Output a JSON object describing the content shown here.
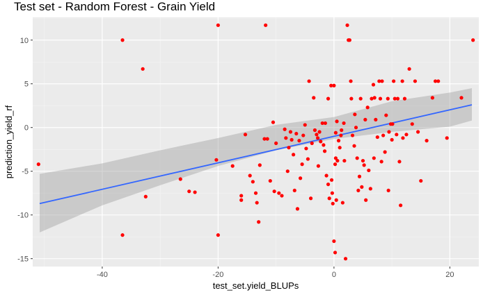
{
  "chart_data": {
    "type": "scatter",
    "title": "Test set - Random Forest - Grain Yield",
    "xlabel": "test_set.yield_BLUPs",
    "ylabel": "prediction_yield_rf",
    "xlim": [
      -52,
      25
    ],
    "ylim": [
      -15.9,
      12.6
    ],
    "xticks": [
      -40,
      -20,
      0,
      20
    ],
    "yticks": [
      -15,
      -10,
      -5,
      0,
      5,
      10
    ],
    "background": "#ebebeb",
    "grid": true,
    "point_color": "#ff0000",
    "fit_line_color": "#3366ff",
    "ribbon_color": "#999999",
    "fit_line": {
      "x_start": -50.8,
      "y_start": -8.7,
      "x_end": 23.8,
      "y_end": 2.6
    },
    "confidence_band": [
      {
        "x": -50.8,
        "lower": -12.0,
        "upper": -5.3
      },
      {
        "x": -40,
        "lower": -8.9,
        "upper": -4.1
      },
      {
        "x": -30,
        "lower": -6.6,
        "upper": -2.6
      },
      {
        "x": -20,
        "lower": -4.4,
        "upper": -1.2
      },
      {
        "x": -10,
        "lower": -2.6,
        "upper": 0.3
      },
      {
        "x": 0,
        "lower": -1.3,
        "upper": 1.2
      },
      {
        "x": 10,
        "lower": -0.5,
        "upper": 3.0
      },
      {
        "x": 20,
        "lower": 0.1,
        "upper": 4.0
      },
      {
        "x": 23.8,
        "lower": 0.8,
        "upper": 4.5
      }
    ],
    "points": [
      [
        -51,
        -4.2
      ],
      [
        -36.5,
        10
      ],
      [
        -36.5,
        -12.3
      ],
      [
        -33,
        6.7
      ],
      [
        -32.5,
        -7.9
      ],
      [
        -26.5,
        -5.9
      ],
      [
        -25,
        -7.3
      ],
      [
        -24,
        -7.4
      ],
      [
        -20,
        11.7
      ],
      [
        -20,
        -12.3
      ],
      [
        -20.3,
        -3.7
      ],
      [
        -17.5,
        -4.4
      ],
      [
        -16,
        -7.8
      ],
      [
        -16,
        -8.3
      ],
      [
        -15.3,
        -0.8
      ],
      [
        -14.5,
        -5.5
      ],
      [
        -14,
        -6.2
      ],
      [
        -13.5,
        -7.5
      ],
      [
        -13.3,
        -8.6
      ],
      [
        -13,
        -10.8
      ],
      [
        -12.8,
        -4.3
      ],
      [
        -12,
        -1.3
      ],
      [
        -11.8,
        11.7
      ],
      [
        -11.5,
        -1.3
      ],
      [
        -11,
        -6.1
      ],
      [
        -10.5,
        0.6
      ],
      [
        -10.3,
        -7.3
      ],
      [
        -10,
        -1.8
      ],
      [
        -9.5,
        -7.5
      ],
      [
        -9,
        -7.8
      ],
      [
        -8.5,
        -0.2
      ],
      [
        -8.3,
        -1.2
      ],
      [
        -8,
        -5
      ],
      [
        -7.8,
        -2.3
      ],
      [
        -7.5,
        -0.5
      ],
      [
        -7.3,
        -1.4
      ],
      [
        -7,
        -3.1
      ],
      [
        -6.8,
        -7.2
      ],
      [
        -6.5,
        -0.7
      ],
      [
        -6.3,
        -9.3
      ],
      [
        -6,
        -1.5
      ],
      [
        -5.8,
        -5.8
      ],
      [
        -5.5,
        -4.2
      ],
      [
        -5.3,
        -0.9
      ],
      [
        -5,
        0.3
      ],
      [
        -4.8,
        -2.4
      ],
      [
        -4.5,
        -3.6
      ],
      [
        -4.3,
        5.3
      ],
      [
        -4,
        -8.1
      ],
      [
        -3.8,
        -1.8
      ],
      [
        -3.5,
        3.4
      ],
      [
        -3.3,
        -0.3
      ],
      [
        -3,
        -0.8
      ],
      [
        -2.8,
        -1.2
      ],
      [
        -2.5,
        -0.5
      ],
      [
        -2.3,
        -1.6
      ],
      [
        -2,
        0.5
      ],
      [
        -1.8,
        -2
      ],
      [
        -1.5,
        0.5
      ],
      [
        -1.3,
        -5.5
      ],
      [
        -1,
        3.3
      ],
      [
        -1,
        -6.5
      ],
      [
        -0.8,
        -8.1
      ],
      [
        -0.5,
        4.8
      ],
      [
        -0.3,
        -7.5
      ],
      [
        -0.2,
        -8.7
      ],
      [
        0,
        4.8
      ],
      [
        0.2,
        -4.2
      ],
      [
        0.3,
        -0.6
      ],
      [
        0.4,
        -8.3
      ],
      [
        0.5,
        0.7
      ],
      [
        0.6,
        -3.8
      ],
      [
        0.8,
        -1.5
      ],
      [
        1,
        -2.3
      ],
      [
        1.2,
        -0.9
      ],
      [
        1.3,
        -0.3
      ],
      [
        1.5,
        -8.6
      ],
      [
        1.7,
        0.5
      ],
      [
        0,
        -13
      ],
      [
        0.2,
        -14.3
      ],
      [
        2,
        -15
      ],
      [
        2.3,
        11.7
      ],
      [
        2.5,
        10
      ],
      [
        2.7,
        10
      ],
      [
        2.9,
        5.3
      ],
      [
        3,
        3.3
      ],
      [
        3.2,
        -0.9
      ],
      [
        3.5,
        -2.1
      ],
      [
        3.8,
        0
      ],
      [
        4,
        -3.5
      ],
      [
        4.2,
        -7.2
      ],
      [
        4.4,
        -5.6
      ],
      [
        4.6,
        3.3
      ],
      [
        4.8,
        -6.8
      ],
      [
        5,
        -3.8
      ],
      [
        5.2,
        -4.3
      ],
      [
        5.5,
        -8.3
      ],
      [
        5.8,
        2.3
      ],
      [
        6,
        -4.9
      ],
      [
        6.3,
        -7
      ],
      [
        6.5,
        3.3
      ],
      [
        6.8,
        4.9
      ],
      [
        7,
        3.4
      ],
      [
        7.2,
        0.9
      ],
      [
        7.5,
        -1.1
      ],
      [
        7.8,
        5.3
      ],
      [
        8,
        3.3
      ],
      [
        8.3,
        5.3
      ],
      [
        8.5,
        -0.9
      ],
      [
        8.8,
        -2.8
      ],
      [
        9,
        1.4
      ],
      [
        9.3,
        3.3
      ],
      [
        9.5,
        -0.5
      ],
      [
        9.8,
        0.4
      ],
      [
        10,
        -1.4
      ],
      [
        10.3,
        5.3
      ],
      [
        10.5,
        3.3
      ],
      [
        10.8,
        -0.8
      ],
      [
        11,
        3.3
      ],
      [
        11.3,
        -3.9
      ],
      [
        11.5,
        -8.9
      ],
      [
        11.8,
        5.3
      ],
      [
        12.2,
        3.3
      ],
      [
        12.5,
        -0.8
      ],
      [
        13,
        6.7
      ],
      [
        13.5,
        0.4
      ],
      [
        14,
        5.3
      ],
      [
        14.5,
        -0.5
      ],
      [
        15,
        -6.1
      ],
      [
        16,
        -1.5
      ],
      [
        17,
        3.4
      ],
      [
        17.5,
        5.3
      ],
      [
        18,
        5.3
      ],
      [
        19.5,
        -1.2
      ],
      [
        22,
        3.4
      ],
      [
        24,
        10
      ],
      [
        0.3,
        -3.5
      ],
      [
        -0.4,
        -6
      ],
      [
        1.8,
        -3.8
      ],
      [
        3.6,
        1.5
      ],
      [
        5.4,
        0.9
      ],
      [
        6.9,
        -3.5
      ],
      [
        8.2,
        -3.9
      ],
      [
        9.4,
        -7.2
      ],
      [
        10.1,
        0.4
      ],
      [
        11.9,
        -1.2
      ],
      [
        -2.7,
        -4.4
      ],
      [
        -1.6,
        -2.7
      ]
    ]
  }
}
